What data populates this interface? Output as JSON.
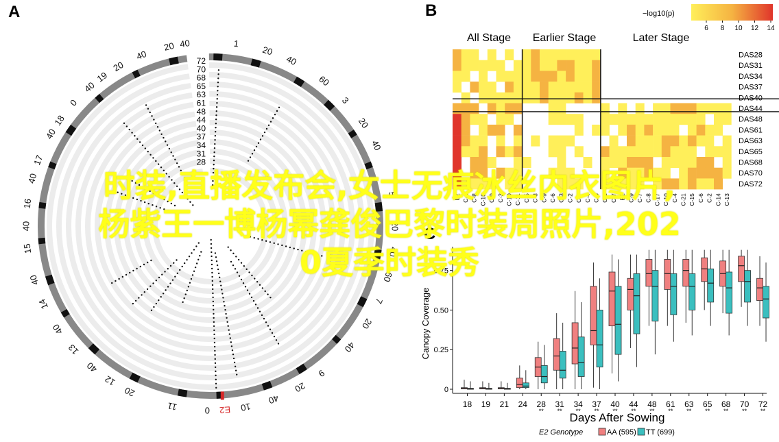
{
  "panels": {
    "a": "A",
    "b": "B",
    "c": "C"
  },
  "panel_a": {
    "outer_labels": [
      {
        "text": "1",
        "angle": 8
      },
      {
        "text": "20",
        "angle": 18
      },
      {
        "text": "40",
        "angle": 26
      },
      {
        "text": "60",
        "angle": 38
      },
      {
        "text": "3",
        "angle": 47
      },
      {
        "text": "20",
        "angle": 56
      },
      {
        "text": "40",
        "angle": 64
      },
      {
        "text": "5",
        "angle": 80
      },
      {
        "text": "20",
        "angle": 90
      },
      {
        "text": "40",
        "angle": 98
      },
      {
        "text": "60",
        "angle": 106
      },
      {
        "text": "7",
        "angle": 114
      },
      {
        "text": "20",
        "angle": 122
      },
      {
        "text": "40",
        "angle": 131
      },
      {
        "text": "9",
        "angle": 143
      },
      {
        "text": "20",
        "angle": 151
      },
      {
        "text": "40",
        "angle": 160
      },
      {
        "text": "10",
        "angle": 169
      },
      {
        "text": "E2",
        "angle": 175.5,
        "red": true
      },
      {
        "text": "0",
        "angle": 181
      },
      {
        "text": "11",
        "angle": 192
      },
      {
        "text": "20",
        "angle": 206
      },
      {
        "text": "12",
        "angle": 213
      },
      {
        "text": "40",
        "angle": 220
      },
      {
        "text": "13",
        "angle": 228
      },
      {
        "text": "40",
        "angle": 236
      },
      {
        "text": "14",
        "angle": 245
      },
      {
        "text": "40",
        "angle": 253
      },
      {
        "text": "15",
        "angle": 263
      },
      {
        "text": "40",
        "angle": 270
      },
      {
        "text": "16",
        "angle": 277
      },
      {
        "text": "40",
        "angle": 285
      },
      {
        "text": "17",
        "angle": 291
      },
      {
        "text": "40",
        "angle": 300
      },
      {
        "text": "18",
        "angle": 305
      },
      {
        "text": "0",
        "angle": 312
      },
      {
        "text": "40",
        "angle": 319
      },
      {
        "text": "19",
        "angle": 324
      },
      {
        "text": "20",
        "angle": 330
      },
      {
        "text": "40",
        "angle": 338
      },
      {
        "text": "20",
        "angle": 347
      },
      {
        "text": "40",
        "angle": 352
      }
    ],
    "ring_labels": [
      "72",
      "70",
      "68",
      "65",
      "63",
      "61",
      "48",
      "44",
      "40",
      "37",
      "34",
      "31",
      "28"
    ]
  },
  "panel_b": {
    "colorbar_title": "−log10(p)",
    "colorbar_ticks": [
      "6",
      "8",
      "10",
      "12",
      "14"
    ],
    "group_labels": [
      "All Stage",
      "Earlier Stage",
      "Later Stage"
    ],
    "rows": [
      "DAS28",
      "DAS31",
      "DAS34",
      "DAS37",
      "DAS40",
      "DAS44",
      "DAS48",
      "DAS61",
      "DAS63",
      "DAS65",
      "DAS68",
      "DAS70",
      "DAS72"
    ],
    "columns": [
      "E2",
      "C-1",
      "C-8",
      "C-18",
      "C-9",
      "C-3",
      "C-10",
      "C-11",
      "C-5",
      "C-8",
      "C-9",
      "C-6",
      "C-3",
      "C-2",
      "C-7",
      "C-4",
      "C-5",
      "C-2",
      "C-7",
      "E2",
      "C-9",
      "C-7",
      "C-8",
      "C-17",
      "C-10",
      "C-4",
      "C-21",
      "C-15",
      "C-6",
      "C-2",
      "C-14",
      "C-13"
    ],
    "colors": {
      "low": "#ffef5a",
      "mid": "#f5b342",
      "high": "#e0352b"
    }
  },
  "chart_data": {
    "type": "box",
    "xlabel": "Days After Sowing",
    "ylabel": "Canopy Coverage",
    "categories": [
      "18",
      "19",
      "21",
      "24",
      "28",
      "31",
      "34",
      "37",
      "40",
      "44",
      "48",
      "61",
      "63",
      "65",
      "68",
      "70",
      "72"
    ],
    "y_ticks": [
      "0",
      "0.25",
      "0.50",
      "0.75"
    ],
    "ylim": [
      0,
      0.9
    ],
    "significance": [
      "",
      "",
      "",
      "",
      "**",
      "**",
      "**",
      "**",
      "**",
      "**",
      "**",
      "**",
      "**",
      "**",
      "**",
      "**",
      "**"
    ],
    "legend": {
      "title": "E2 Genotype",
      "position": "bottom"
    },
    "series": [
      {
        "name": "AA (595)",
        "color": "#f08080",
        "q1": [
          0.002,
          0.002,
          0.002,
          0.01,
          0.08,
          0.12,
          0.16,
          0.28,
          0.4,
          0.5,
          0.65,
          0.63,
          0.65,
          0.68,
          0.65,
          0.68,
          0.56
        ],
        "med": [
          0.005,
          0.005,
          0.005,
          0.03,
          0.14,
          0.21,
          0.26,
          0.37,
          0.62,
          0.63,
          0.73,
          0.73,
          0.75,
          0.76,
          0.73,
          0.78,
          0.64
        ],
        "q3": [
          0.01,
          0.01,
          0.01,
          0.07,
          0.2,
          0.32,
          0.42,
          0.65,
          0.74,
          0.7,
          0.82,
          0.82,
          0.82,
          0.83,
          0.81,
          0.84,
          0.7
        ],
        "lo": [
          0,
          0,
          0,
          0,
          0,
          0,
          0,
          0.01,
          0.1,
          0.26,
          0.4,
          0.4,
          0.42,
          0.5,
          0.48,
          0.52,
          0.4
        ],
        "hi": [
          0.06,
          0.05,
          0.05,
          0.15,
          0.3,
          0.48,
          0.62,
          0.8,
          0.85,
          0.85,
          0.88,
          0.88,
          0.88,
          0.88,
          0.88,
          0.88,
          0.84
        ]
      },
      {
        "name": "TT (699)",
        "color": "#3bbfbf",
        "q1": [
          0.002,
          0.002,
          0.002,
          0.01,
          0.04,
          0.07,
          0.08,
          0.14,
          0.22,
          0.35,
          0.43,
          0.47,
          0.5,
          0.55,
          0.48,
          0.55,
          0.45
        ],
        "med": [
          0.003,
          0.003,
          0.003,
          0.02,
          0.08,
          0.12,
          0.17,
          0.28,
          0.41,
          0.59,
          0.65,
          0.65,
          0.65,
          0.67,
          0.64,
          0.68,
          0.57
        ],
        "q3": [
          0.006,
          0.006,
          0.006,
          0.04,
          0.15,
          0.24,
          0.33,
          0.5,
          0.65,
          0.73,
          0.75,
          0.73,
          0.73,
          0.76,
          0.74,
          0.75,
          0.65
        ],
        "lo": [
          0,
          0,
          0,
          0,
          0,
          0,
          0,
          0,
          0.05,
          0.14,
          0.22,
          0.3,
          0.34,
          0.4,
          0.34,
          0.4,
          0.3
        ],
        "hi": [
          0.05,
          0.04,
          0.04,
          0.12,
          0.28,
          0.42,
          0.55,
          0.7,
          0.82,
          0.85,
          0.88,
          0.88,
          0.88,
          0.88,
          0.88,
          0.88,
          0.8
        ]
      }
    ]
  },
  "overlay_text": [
    "时装,直播发布会,女士无痕冰丝内衣图片,",
    "杨紫王一博杨幂龚俊巴黎时装周照片,202",
    "0夏季时装秀"
  ]
}
